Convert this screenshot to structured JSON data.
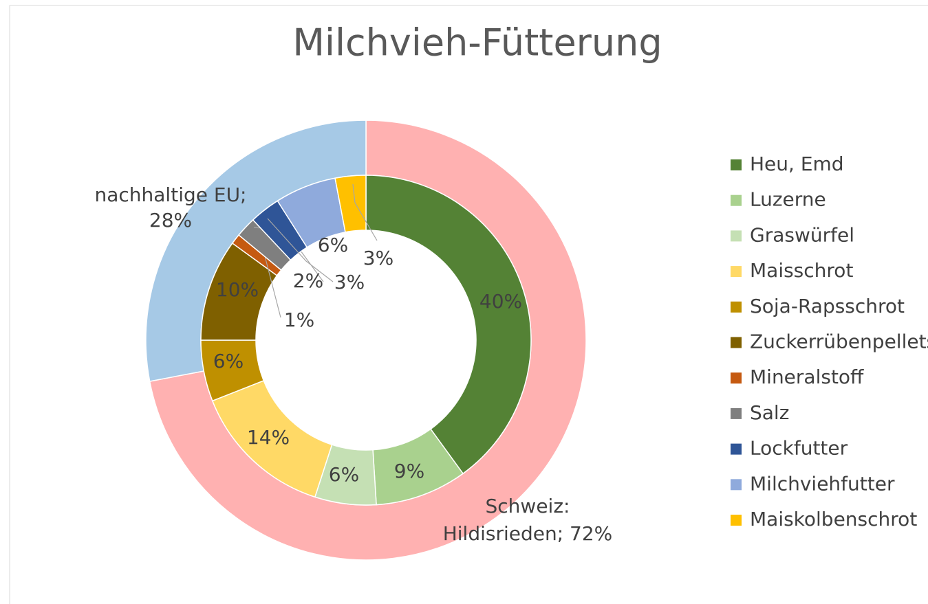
{
  "chart_data": {
    "type": "donut",
    "title": "Milchvieh-Fütterung",
    "rings": [
      {
        "categories": [
          "Schweiz: Hildisrieden",
          "nachhaltige EU"
        ],
        "values": [
          72,
          28
        ],
        "value_labels": [
          "Schweiz: Hildisrieden; 72%",
          "nachhaltige EU; 28%"
        ],
        "colors": [
          "#ffb1b1",
          "#a6c9e6"
        ]
      },
      {
        "categories": [
          "Heu, Emd",
          "Luzerne",
          "Graswürfel",
          "Maisschrot",
          "Soja-Rapsschrot",
          "Zuckerrübenpellets",
          "Mineralstoff",
          "Salz",
          "Lockfutter",
          "Milchviehfutter",
          "Maiskolbenschrot"
        ],
        "values": [
          40,
          9,
          6,
          14,
          6,
          10,
          1,
          2,
          3,
          6,
          3
        ],
        "value_labels": [
          "40%",
          "9%",
          "6%",
          "14%",
          "6%",
          "10%",
          "1%",
          "2%",
          "3%",
          "6%",
          "3%"
        ],
        "colors": [
          "#548235",
          "#a9d18e",
          "#c5e0b4",
          "#ffd966",
          "#bf9000",
          "#7f6000",
          "#c55a11",
          "#7f7f7f",
          "#2f5597",
          "#8faadc",
          "#ffc000"
        ]
      }
    ],
    "legend": "right"
  }
}
